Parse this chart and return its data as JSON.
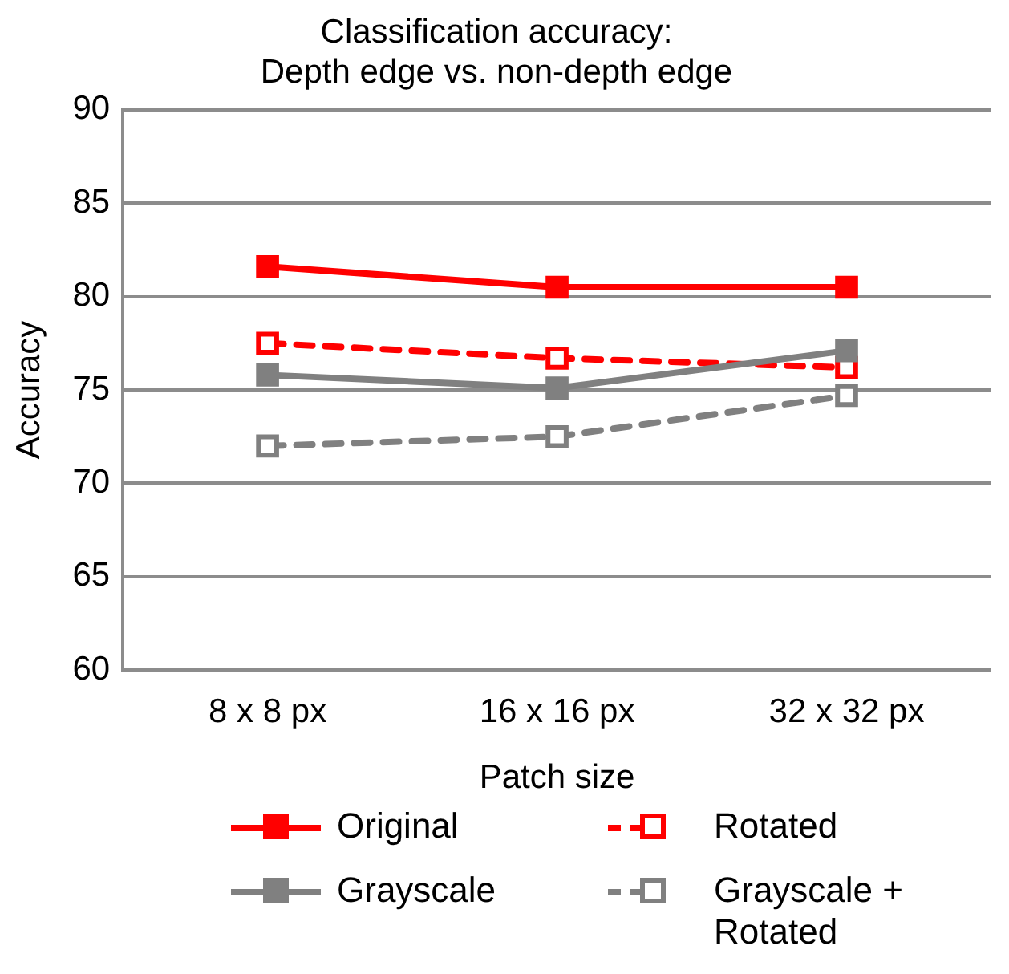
{
  "chart_data": {
    "type": "line",
    "title": [
      "Classification accuracy:",
      "Depth edge vs. non-depth edge"
    ],
    "xlabel": "Patch size",
    "ylabel": "Accuracy",
    "categories": [
      "8 x 8 px",
      "16 x 16 px",
      "32 x 32 px"
    ],
    "ylim": [
      60,
      90
    ],
    "yticks": [
      60,
      65,
      70,
      75,
      80,
      85,
      90
    ],
    "grid": "y",
    "legend": "bottom",
    "marker": "square",
    "series": [
      {
        "name": "Original",
        "color": "#ff0000",
        "values": [
          81.6,
          80.5,
          80.5
        ],
        "line_style": "solid"
      },
      {
        "name": "Grayscale",
        "color": "#808080",
        "values": [
          75.8,
          75.1,
          77.1
        ],
        "line_style": "solid"
      },
      {
        "name": "Rotated",
        "color": "#ff0000",
        "values": [
          77.5,
          76.7,
          76.2
        ],
        "line_style": "dashed"
      },
      {
        "name": "Grayscale + Rotated",
        "color": "#808080",
        "values": [
          72.0,
          72.5,
          74.7
        ],
        "line_style": "dashed"
      }
    ]
  }
}
